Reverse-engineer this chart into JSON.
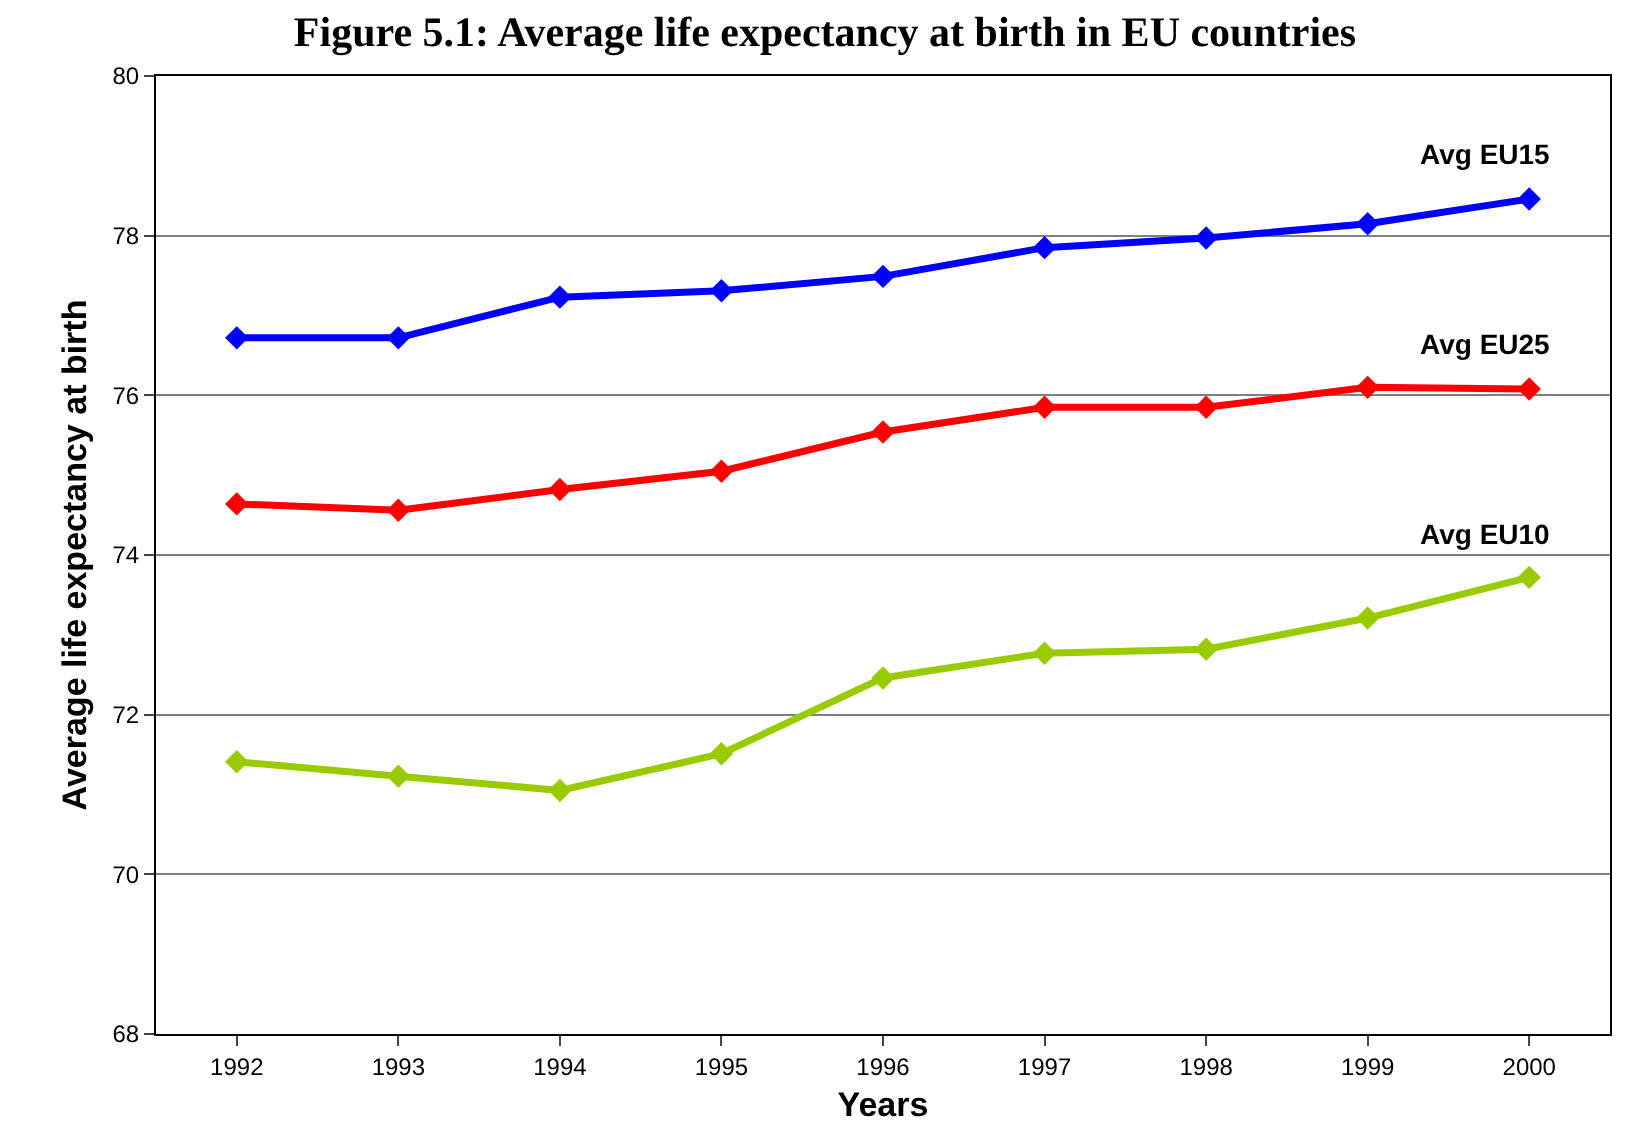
{
  "chart_data": {
    "type": "line",
    "title": "Figure 5.1: Average life expectancy at birth in EU countries",
    "xlabel": "Years",
    "ylabel": "Average life expectancy at birth",
    "categories": [
      "1992",
      "1993",
      "1994",
      "1995",
      "1996",
      "1997",
      "1998",
      "1999",
      "2000"
    ],
    "series": [
      {
        "name": "Avg EU15",
        "color": "#0000ff",
        "values": [
          76.72,
          76.72,
          77.23,
          77.31,
          77.49,
          77.85,
          77.97,
          78.15,
          78.46
        ]
      },
      {
        "name": "Avg EU25",
        "color": "#ff0000",
        "values": [
          74.64,
          74.56,
          74.82,
          75.05,
          75.54,
          75.85,
          75.85,
          76.1,
          76.08
        ]
      },
      {
        "name": "Avg EU10",
        "color": "#99cc00",
        "values": [
          71.41,
          71.23,
          71.05,
          71.51,
          72.46,
          72.77,
          72.82,
          73.21,
          73.72
        ]
      }
    ],
    "ylim": [
      68,
      80
    ],
    "yticks": [
      68,
      70,
      72,
      74,
      76,
      78,
      80
    ],
    "grid": "y",
    "legend": false,
    "marker": "diamond",
    "line_style": "solid"
  }
}
